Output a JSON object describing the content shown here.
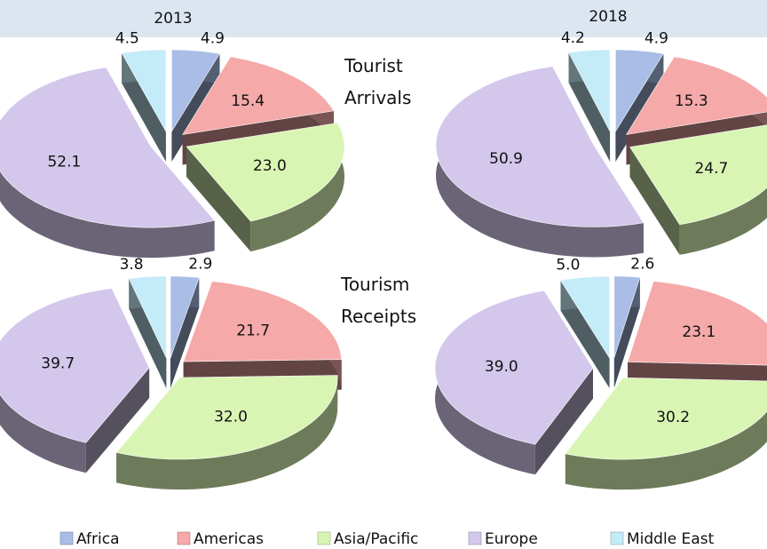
{
  "header": {
    "columns": [
      "2013",
      "2018"
    ],
    "rows": [
      "Tourist Arrivals",
      "Tourism Receipts"
    ]
  },
  "legend": {
    "categories": [
      "Africa",
      "Americas",
      "Asia/Pacific",
      "Europe",
      "Middle East"
    ],
    "colors": [
      "#a9bde6",
      "#f5a9a9",
      "#d9f5b4",
      "#d3c7ec",
      "#c4ebf8"
    ]
  },
  "chart_data": [
    {
      "type": "pie",
      "values": [
        4.9,
        15.4,
        23.0,
        52.1,
        4.5
      ],
      "value_labels": [
        "4.9",
        "15.4",
        "23.0",
        "52.1",
        "4.5"
      ]
    },
    {
      "type": "pie",
      "values": [
        4.9,
        15.3,
        24.7,
        50.9,
        4.2
      ],
      "value_labels": [
        "4.9",
        "15.3",
        "24.7",
        "50.9",
        "4.2"
      ]
    },
    {
      "type": "pie",
      "values": [
        2.9,
        21.7,
        32.0,
        39.7,
        3.8
      ],
      "value_labels": [
        "2.9",
        "21.7",
        "32.0",
        "39.7",
        "3.8"
      ]
    },
    {
      "type": "pie",
      "values": [
        2.6,
        23.1,
        30.2,
        39.0,
        5.0
      ],
      "value_labels": [
        "2.6",
        "23.1",
        "30.2",
        "39.0",
        "5.0"
      ]
    }
  ]
}
